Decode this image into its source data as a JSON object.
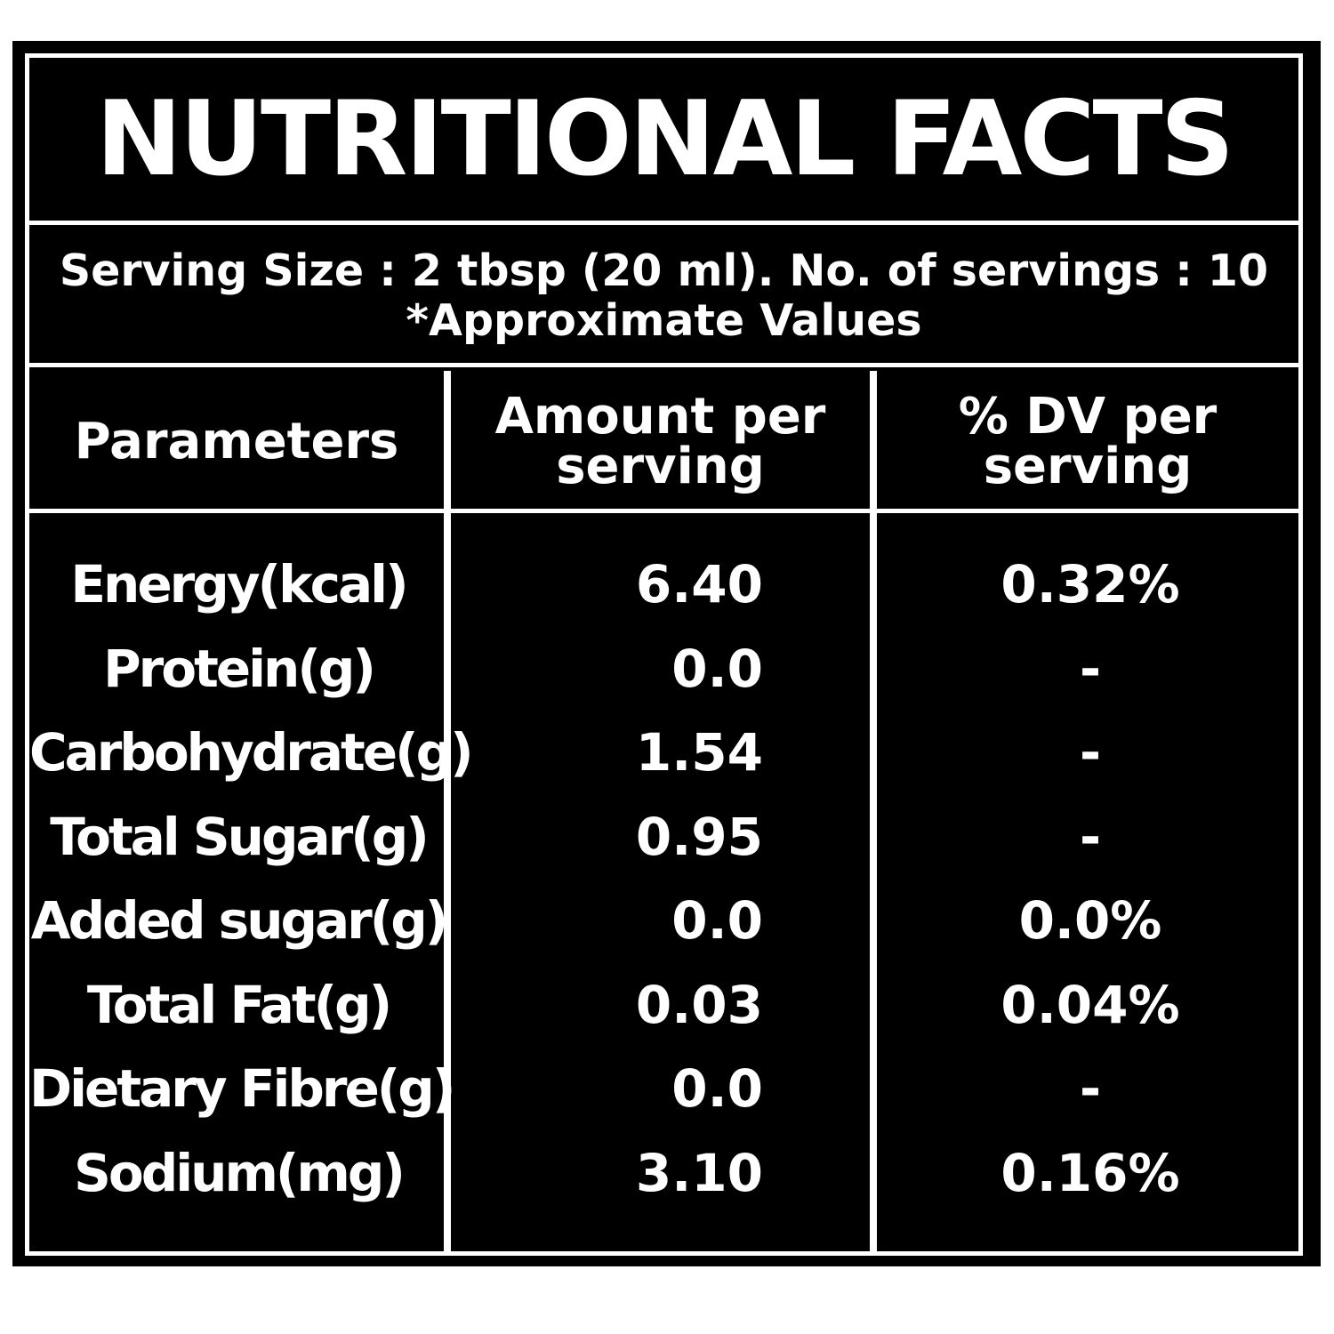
{
  "title": "NUTRITIONAL FACTS",
  "serving": {
    "line1": "Serving Size : 2 tbsp (20 ml). No. of servings : 10",
    "line2": "*Approximate Values"
  },
  "headers": {
    "parameters": "Parameters",
    "amount_line1": "Amount per",
    "amount_line2": "serving",
    "dv_line1": "% DV per",
    "dv_line2": "serving"
  },
  "rows": [
    {
      "parameter": "Energy(kcal)",
      "amount": "6.40",
      "dv": "0.32%"
    },
    {
      "parameter": "Protein(g)",
      "amount": "0.0",
      "dv": "-"
    },
    {
      "parameter": "Carbohydrate(g)",
      "amount": "1.54",
      "dv": "-"
    },
    {
      "parameter": "Total Sugar(g)",
      "amount": "0.95",
      "dv": "-"
    },
    {
      "parameter": "Added sugar(g)",
      "amount": "0.0",
      "dv": "0.0%"
    },
    {
      "parameter": "Total Fat(g)",
      "amount": "0.03",
      "dv": "0.04%"
    },
    {
      "parameter": "Dietary Fibre(g)",
      "amount": "0.0",
      "dv": "-"
    },
    {
      "parameter": "Sodium(mg)",
      "amount": "3.10",
      "dv": "0.16%"
    }
  ]
}
